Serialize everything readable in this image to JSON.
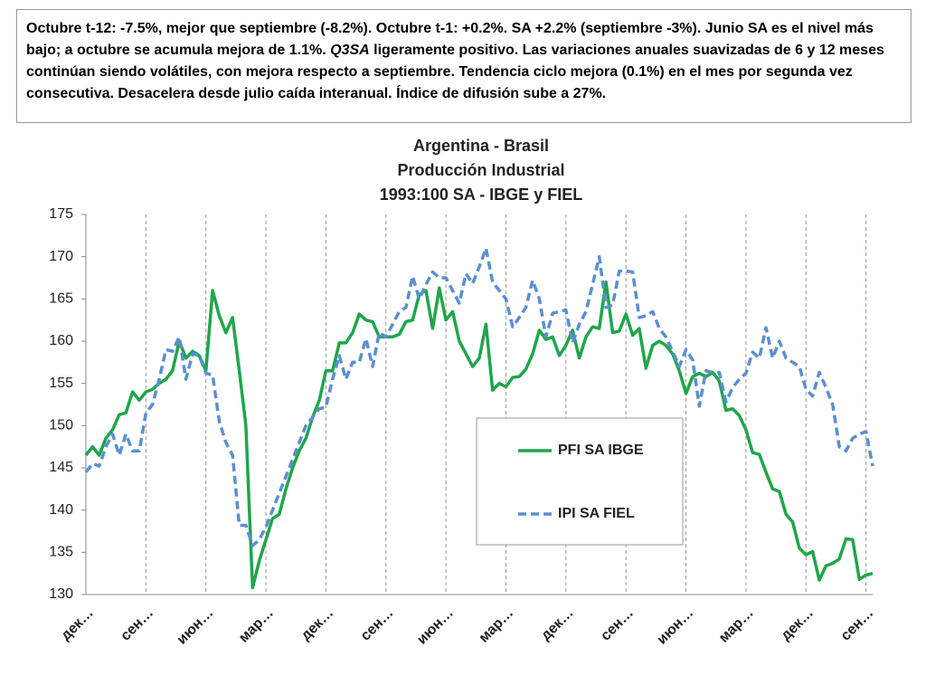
{
  "note": {
    "text_before": "Octubre t-12: -7.5%, mejor que septiembre (-8.2%). Octubre t-1: +0.2%. SA +2.2% (septiembre -3%). Junio SA es el nivel más bajo; a octubre se acumula mejora de 1.1%. ",
    "emphasis": "Q3SA",
    "text_after": " ligeramente positivo. Las variaciones anuales suavizadas de 6 y 12 meses continúan siendo volátiles, con mejora respecto a septiembre. Tendencia ciclo mejora (0.1%) en el mes por segunda vez consecutiva. Desacelera desde julio caída interanual. Índice de difusión sube a 27%."
  },
  "chart_data": {
    "type": "line",
    "title": [
      "Argentina - Brasil",
      "Producción Industrial",
      "1993:100 SA - IBGE y FIEL"
    ],
    "categories": [
      "дек…",
      null,
      null,
      null,
      null,
      null,
      null,
      null,
      null,
      "сен…",
      null,
      null,
      null,
      null,
      null,
      null,
      null,
      null,
      "июн…",
      null,
      null,
      null,
      null,
      null,
      null,
      null,
      null,
      "мар…",
      null,
      null,
      null,
      null,
      null,
      null,
      null,
      null,
      "дек…",
      null,
      null,
      null,
      null,
      null,
      null,
      null,
      null,
      "сен…",
      null,
      null,
      null,
      null,
      null,
      null,
      null,
      null,
      "июн…",
      null,
      null,
      null,
      null,
      null,
      null,
      null,
      null,
      "мар…",
      null,
      null,
      null,
      null,
      null,
      null,
      null,
      null,
      "дек…",
      null,
      null,
      null,
      null,
      null,
      null,
      null,
      null,
      "сен…",
      null,
      null,
      null,
      null,
      null,
      null,
      null,
      null,
      "июн…",
      null,
      null,
      null,
      null,
      null,
      null,
      null,
      null,
      "мар…",
      null,
      null,
      null,
      null,
      null,
      null,
      null,
      null,
      "дек…",
      null,
      null,
      null,
      null,
      null,
      null,
      null,
      null,
      "сен…",
      null
    ],
    "series": [
      {
        "name": "PFI SA IBGE",
        "color": "#1fa64a",
        "dashed": false,
        "values": [
          146.5,
          147.5,
          146.5,
          148.5,
          149.5,
          151.3,
          151.5,
          154,
          153,
          154,
          154.3,
          155,
          155.5,
          156.5,
          160,
          158,
          158.8,
          158.3,
          156.5,
          166,
          163,
          161,
          162.8,
          156.5,
          150,
          130.8,
          134,
          136.5,
          139,
          139.5,
          142.5,
          145,
          147,
          148.5,
          151,
          153,
          156.5,
          156.5,
          159.8,
          159.8,
          161,
          163.2,
          162.5,
          162.3,
          160.5,
          160.5,
          160.5,
          160.8,
          162.3,
          162.5,
          165.5,
          166,
          161.5,
          166.3,
          162.5,
          163.5,
          160,
          158.5,
          157,
          158,
          162,
          154.2,
          155,
          154.6,
          155.7,
          155.8,
          156.7,
          158.5,
          161.3,
          160.2,
          160.5,
          158.3,
          159.5,
          161.3,
          158,
          160.5,
          161.7,
          161.5,
          167,
          161,
          161.2,
          163.2,
          160.7,
          161.5,
          156.8,
          159.5,
          160,
          159.5,
          158.5,
          156.5,
          153.8,
          155.8,
          156.2,
          155.8,
          156.3,
          155.3,
          151.8,
          152,
          151.2,
          149.5,
          146.8,
          146.6,
          144.5,
          142.5,
          142.2,
          139.5,
          138.6,
          135.5,
          134.7,
          135.1,
          131.7,
          133.4,
          133.7,
          134.2,
          136.6,
          136.5,
          131.8,
          132.3,
          132.5
        ]
      },
      {
        "name": "IPI SA FIEL",
        "color": "#5b8fd0",
        "dashed": true,
        "values": [
          144.5,
          145.5,
          145.2,
          147.5,
          149,
          146.5,
          149,
          147,
          147,
          151.5,
          152.5,
          155.5,
          159,
          158.8,
          160.5,
          155.5,
          158.5,
          158.3,
          156.2,
          156,
          150.5,
          148,
          146.5,
          138.2,
          138.2,
          135.8,
          136.5,
          138,
          140,
          142,
          144,
          146,
          148,
          150,
          151,
          152,
          152.2,
          155.5,
          158.3,
          155.5,
          157.5,
          157.5,
          160.3,
          157,
          161,
          160.5,
          162,
          163.5,
          164,
          167.7,
          165,
          166.7,
          168.2,
          167.5,
          167.5,
          166,
          164.5,
          168,
          166.8,
          168.8,
          171,
          167,
          166,
          165,
          161.7,
          162.8,
          164,
          167.2,
          165,
          160.5,
          163.3,
          163.5,
          163.7,
          159.8,
          162,
          163.5,
          166.7,
          170,
          164,
          164.3,
          168.3,
          168.3,
          168.2,
          162.8,
          163,
          163.5,
          161.5,
          160.5,
          158.8,
          157,
          159,
          157.8,
          152.3,
          156.5,
          156.3,
          156.3,
          152.8,
          154.5,
          155.5,
          156.2,
          158.7,
          158,
          161.6,
          158,
          160,
          158,
          157.5,
          157,
          154.3,
          153.5,
          156.3,
          154.5,
          152.5,
          147.5,
          147,
          148.5,
          149,
          149.3,
          145.2
        ]
      }
    ],
    "ylim": [
      130,
      175
    ],
    "yticks": [
      130,
      135,
      140,
      145,
      150,
      155,
      160,
      165,
      170,
      175
    ],
    "grid": true
  }
}
